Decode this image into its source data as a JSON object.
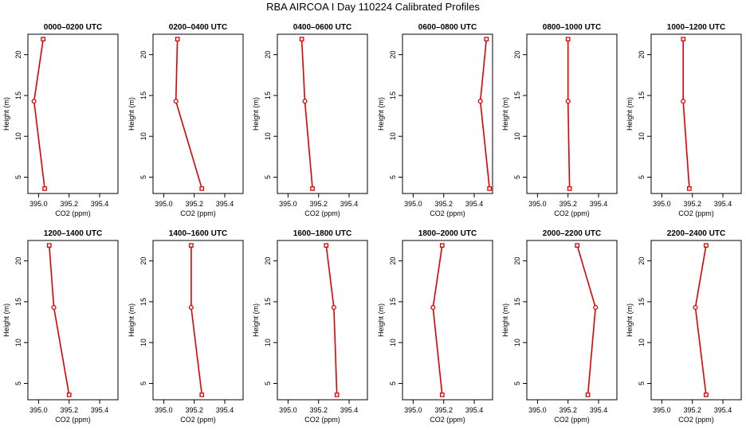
{
  "figure": {
    "title": "RBA AIRCOA I  Day 110224  Calibrated Profiles"
  },
  "colors": {
    "series": "#dd0000",
    "axis": "#000000"
  },
  "chart_data": [
    {
      "type": "line",
      "title": "0000–0200 UTC",
      "xlabel": "CO2 (ppm)",
      "ylabel": "Height (m)",
      "xlim": [
        394.93,
        395.52
      ],
      "ylim": [
        3,
        22.5
      ],
      "xticks": [
        395.0,
        395.2,
        395.4
      ],
      "xtick_labels": [
        "395.0",
        "395.2",
        "395.4"
      ],
      "yticks": [
        5,
        10,
        15,
        20
      ],
      "ytick_labels": [
        "5",
        "10",
        "15",
        "20"
      ],
      "x": [
        395.03,
        394.97,
        395.04
      ],
      "y": [
        21.9,
        14.3,
        3.6
      ],
      "grid": false,
      "legend": "none"
    },
    {
      "type": "line",
      "title": "0200–0400 UTC",
      "xlabel": "CO2 (ppm)",
      "ylabel": "Height (m)",
      "xlim": [
        394.93,
        395.52
      ],
      "ylim": [
        3,
        22.5
      ],
      "xticks": [
        395.0,
        395.2,
        395.4
      ],
      "xtick_labels": [
        "395.0",
        "395.2",
        "395.4"
      ],
      "yticks": [
        5,
        10,
        15,
        20
      ],
      "ytick_labels": [
        "5",
        "10",
        "15",
        "20"
      ],
      "x": [
        395.09,
        395.08,
        395.25
      ],
      "y": [
        21.9,
        14.3,
        3.6
      ],
      "grid": false,
      "legend": "none"
    },
    {
      "type": "line",
      "title": "0400–0600 UTC",
      "xlabel": "CO2 (ppm)",
      "ylabel": "Height (m)",
      "xlim": [
        394.93,
        395.52
      ],
      "ylim": [
        3,
        22.5
      ],
      "xticks": [
        395.0,
        395.2,
        395.4
      ],
      "xtick_labels": [
        "395.0",
        "395.2",
        "395.4"
      ],
      "yticks": [
        5,
        10,
        15,
        20
      ],
      "ytick_labels": [
        "5",
        "10",
        "15",
        "20"
      ],
      "x": [
        395.09,
        395.11,
        395.16
      ],
      "y": [
        21.9,
        14.3,
        3.6
      ],
      "grid": false,
      "legend": "none"
    },
    {
      "type": "line",
      "title": "0600–0800 UTC",
      "xlabel": "CO2 (ppm)",
      "ylabel": "Height (m)",
      "xlim": [
        394.93,
        395.52
      ],
      "ylim": [
        3,
        22.5
      ],
      "xticks": [
        395.0,
        395.2,
        395.4
      ],
      "xtick_labels": [
        "395.0",
        "395.2",
        "395.4"
      ],
      "yticks": [
        5,
        10,
        15,
        20
      ],
      "ytick_labels": [
        "5",
        "10",
        "15",
        "20"
      ],
      "x": [
        395.48,
        395.44,
        395.5
      ],
      "y": [
        21.9,
        14.3,
        3.6
      ],
      "grid": false,
      "legend": "none"
    },
    {
      "type": "line",
      "title": "0800–1000 UTC",
      "xlabel": "CO2 (ppm)",
      "ylabel": "Height (m)",
      "xlim": [
        394.93,
        395.52
      ],
      "ylim": [
        3,
        22.5
      ],
      "xticks": [
        395.0,
        395.2,
        395.4
      ],
      "xtick_labels": [
        "395.0",
        "395.2",
        "395.4"
      ],
      "yticks": [
        5,
        10,
        15,
        20
      ],
      "ytick_labels": [
        "5",
        "10",
        "15",
        "20"
      ],
      "x": [
        395.2,
        395.2,
        395.21
      ],
      "y": [
        21.9,
        14.3,
        3.6
      ],
      "grid": false,
      "legend": "none"
    },
    {
      "type": "line",
      "title": "1000–1200 UTC",
      "xlabel": "CO2 (ppm)",
      "ylabel": "Height (m)",
      "xlim": [
        394.93,
        395.52
      ],
      "ylim": [
        3,
        22.5
      ],
      "xticks": [
        395.0,
        395.2,
        395.4
      ],
      "xtick_labels": [
        "395.0",
        "395.2",
        "395.4"
      ],
      "yticks": [
        5,
        10,
        15,
        20
      ],
      "ytick_labels": [
        "5",
        "10",
        "15",
        "20"
      ],
      "x": [
        395.14,
        395.14,
        395.18
      ],
      "y": [
        21.9,
        14.3,
        3.6
      ],
      "grid": false,
      "legend": "none"
    },
    {
      "type": "line",
      "title": "1200–1400 UTC",
      "xlabel": "CO2 (ppm)",
      "ylabel": "Height (m)",
      "xlim": [
        394.93,
        395.52
      ],
      "ylim": [
        3,
        22.5
      ],
      "xticks": [
        395.0,
        395.2,
        395.4
      ],
      "xtick_labels": [
        "395.0",
        "395.2",
        "395.4"
      ],
      "yticks": [
        5,
        10,
        15,
        20
      ],
      "ytick_labels": [
        "5",
        "10",
        "15",
        "20"
      ],
      "x": [
        395.07,
        395.1,
        395.2
      ],
      "y": [
        21.9,
        14.3,
        3.6
      ],
      "grid": false,
      "legend": "none"
    },
    {
      "type": "line",
      "title": "1400–1600 UTC",
      "xlabel": "CO2 (ppm)",
      "ylabel": "Height (m)",
      "xlim": [
        394.93,
        395.52
      ],
      "ylim": [
        3,
        22.5
      ],
      "xticks": [
        395.0,
        395.2,
        395.4
      ],
      "xtick_labels": [
        "395.0",
        "395.2",
        "395.4"
      ],
      "yticks": [
        5,
        10,
        15,
        20
      ],
      "ytick_labels": [
        "5",
        "10",
        "15",
        "20"
      ],
      "x": [
        395.18,
        395.18,
        395.25
      ],
      "y": [
        21.9,
        14.3,
        3.6
      ],
      "grid": false,
      "legend": "none"
    },
    {
      "type": "line",
      "title": "1600–1800 UTC",
      "xlabel": "CO2 (ppm)",
      "ylabel": "Height (m)",
      "xlim": [
        394.93,
        395.52
      ],
      "ylim": [
        3,
        22.5
      ],
      "xticks": [
        395.0,
        395.2,
        395.4
      ],
      "xtick_labels": [
        "395.0",
        "395.2",
        "395.4"
      ],
      "yticks": [
        5,
        10,
        15,
        20
      ],
      "ytick_labels": [
        "5",
        "10",
        "15",
        "20"
      ],
      "x": [
        395.25,
        395.3,
        395.32
      ],
      "y": [
        21.9,
        14.3,
        3.6
      ],
      "grid": false,
      "legend": "none"
    },
    {
      "type": "line",
      "title": "1800–2000 UTC",
      "xlabel": "CO2 (ppm)",
      "ylabel": "Height (m)",
      "xlim": [
        394.93,
        395.52
      ],
      "ylim": [
        3,
        22.5
      ],
      "xticks": [
        395.0,
        395.2,
        395.4
      ],
      "xtick_labels": [
        "395.0",
        "395.2",
        "395.4"
      ],
      "yticks": [
        5,
        10,
        15,
        20
      ],
      "ytick_labels": [
        "5",
        "10",
        "15",
        "20"
      ],
      "x": [
        395.19,
        395.13,
        395.19
      ],
      "y": [
        21.9,
        14.3,
        3.6
      ],
      "grid": false,
      "legend": "none"
    },
    {
      "type": "line",
      "title": "2000–2200 UTC",
      "xlabel": "CO2 (ppm)",
      "ylabel": "Height (m)",
      "xlim": [
        394.93,
        395.52
      ],
      "ylim": [
        3,
        22.5
      ],
      "xticks": [
        395.0,
        395.2,
        395.4
      ],
      "xtick_labels": [
        "395.0",
        "395.2",
        "395.4"
      ],
      "yticks": [
        5,
        10,
        15,
        20
      ],
      "ytick_labels": [
        "5",
        "10",
        "15",
        "20"
      ],
      "x": [
        395.26,
        395.38,
        395.33
      ],
      "y": [
        21.9,
        14.3,
        3.6
      ],
      "grid": false,
      "legend": "none"
    },
    {
      "type": "line",
      "title": "2200–2400 UTC",
      "xlabel": "CO2 (ppm)",
      "ylabel": "Height (m)",
      "xlim": [
        394.93,
        395.52
      ],
      "ylim": [
        3,
        22.5
      ],
      "xticks": [
        395.0,
        395.2,
        395.4
      ],
      "xtick_labels": [
        "395.0",
        "395.2",
        "395.4"
      ],
      "yticks": [
        5,
        10,
        15,
        20
      ],
      "ytick_labels": [
        "5",
        "10",
        "15",
        "20"
      ],
      "x": [
        395.29,
        395.22,
        395.29
      ],
      "y": [
        21.9,
        14.3,
        3.6
      ],
      "grid": false,
      "legend": "none"
    }
  ]
}
